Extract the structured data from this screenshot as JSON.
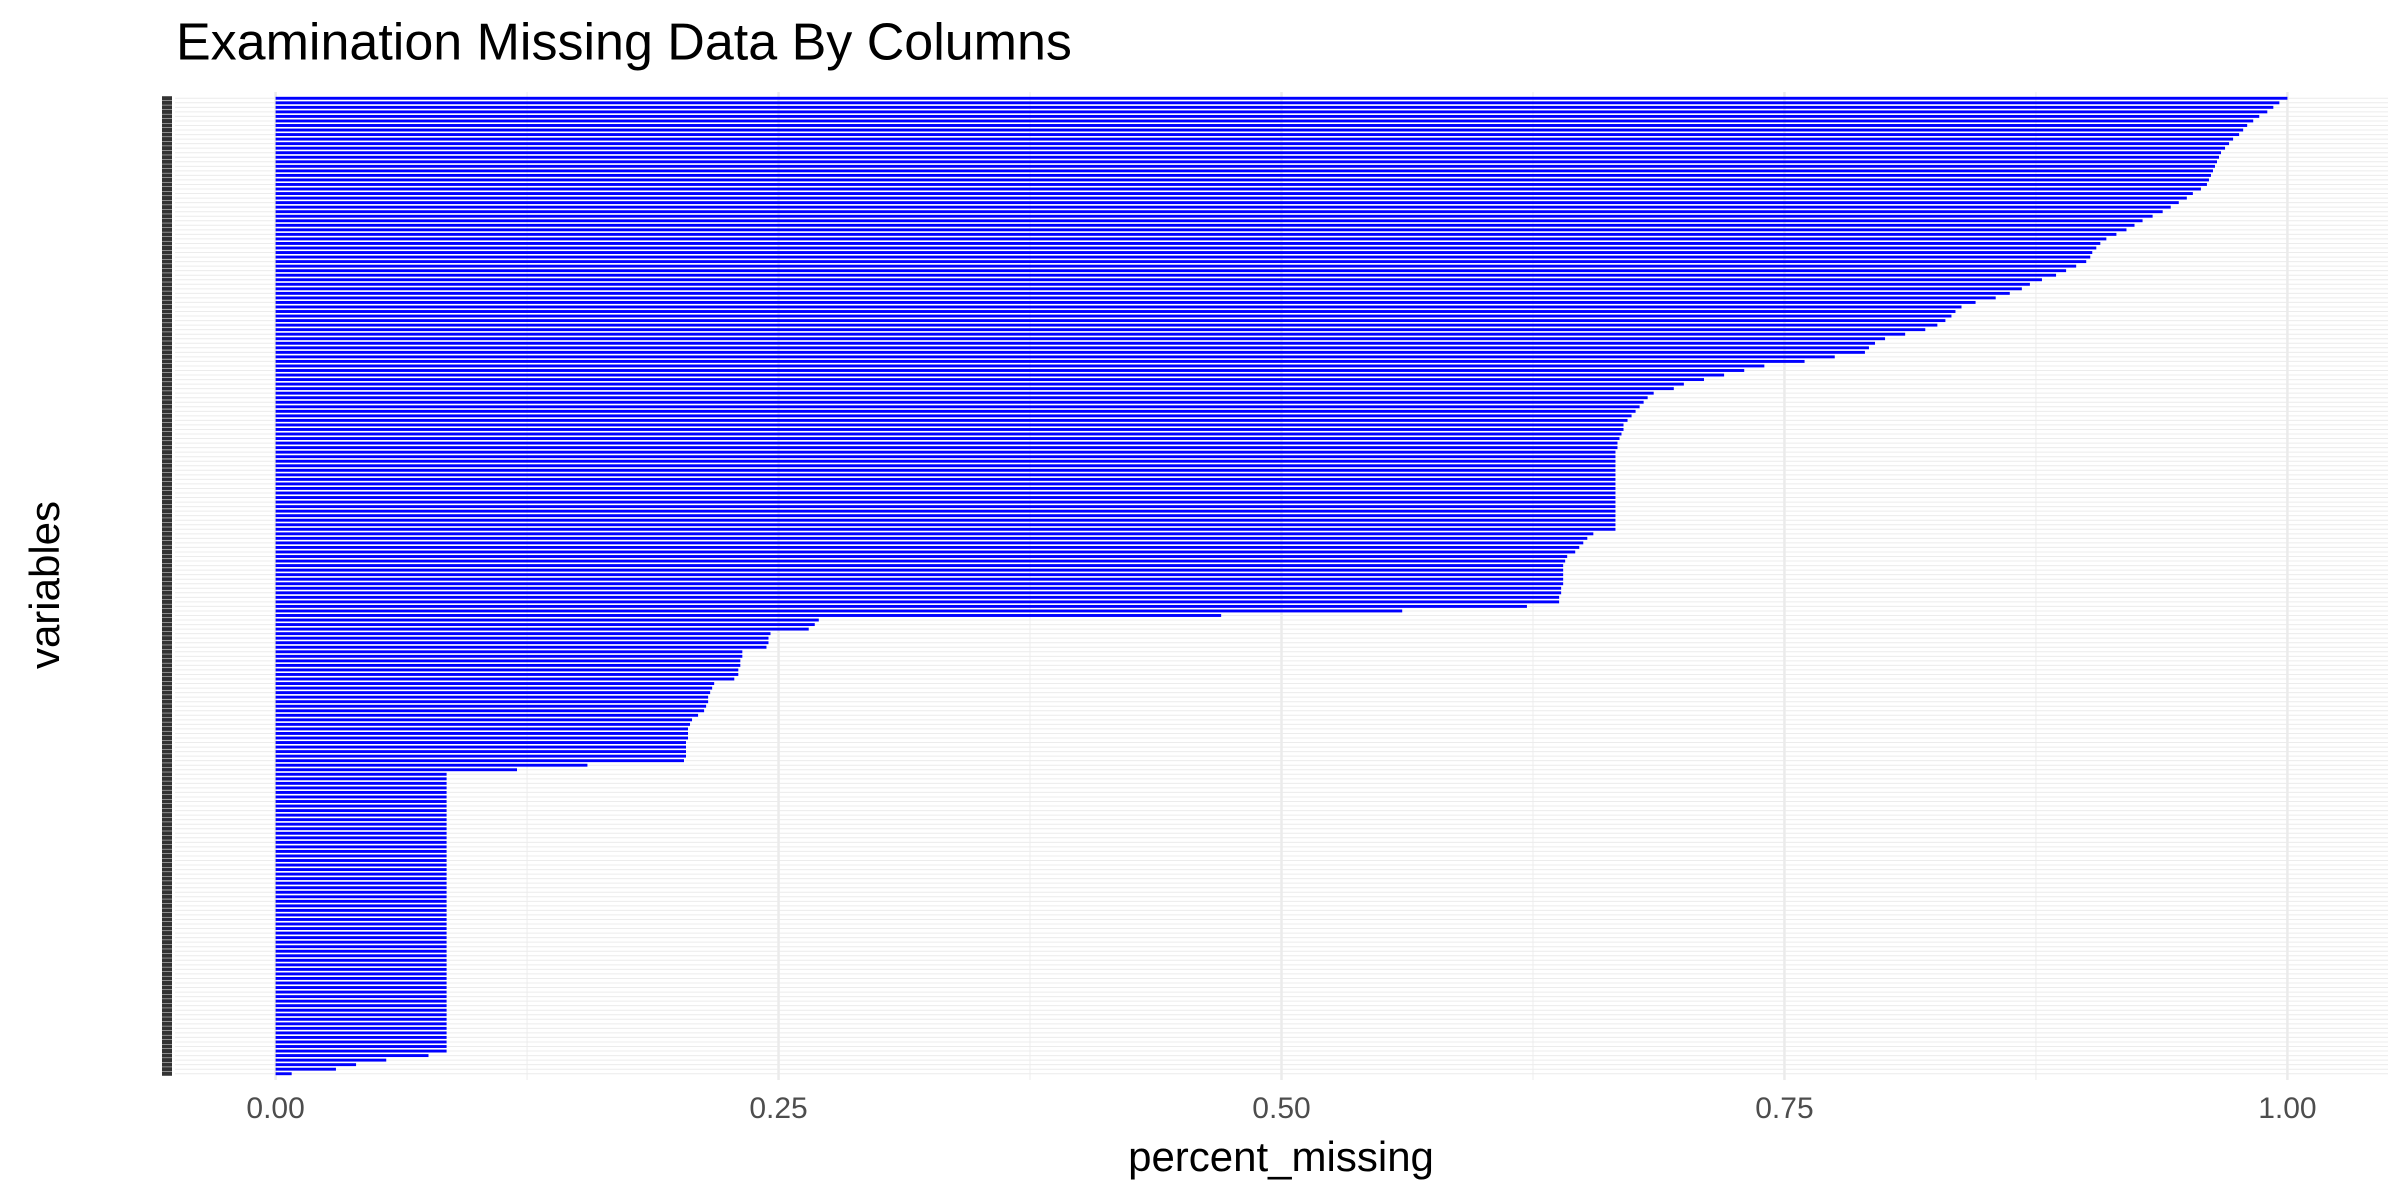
{
  "chart_data": {
    "type": "bar",
    "orientation": "horizontal",
    "title": "Examination Missing Data By Columns",
    "x_label": "percent_missing",
    "y_label": "variables",
    "color": "#0000ff",
    "grid": true,
    "xlim": [
      -0.05,
      1.05
    ],
    "xticks": [
      {
        "value": 0,
        "label": "0.00"
      },
      0.25,
      {
        "value": 0.5,
        "label": "0.50"
      },
      0.75,
      {
        "value": 1,
        "label": "1.00"
      }
    ],
    "categories": [
      null,
      null,
      null,
      null,
      null,
      null,
      null,
      null,
      null,
      null,
      null,
      null,
      null,
      null,
      null,
      null,
      null,
      null,
      null,
      null,
      null,
      null,
      null,
      null,
      null,
      null,
      null,
      null,
      null,
      null,
      null,
      null,
      null,
      null,
      null,
      null,
      null,
      null,
      null,
      null,
      null,
      null,
      null,
      null,
      null,
      null,
      null,
      null,
      null,
      null,
      null,
      null,
      null,
      null,
      null,
      null,
      null,
      null,
      null,
      null,
      null,
      null,
      null,
      null,
      null,
      null,
      null,
      null,
      null,
      null,
      null,
      null,
      null,
      null,
      null,
      null,
      null,
      null,
      null,
      null,
      null,
      null,
      null,
      null,
      null,
      null,
      null,
      null,
      null,
      null,
      null,
      null,
      null,
      null,
      null,
      null,
      null,
      null,
      null,
      null,
      null,
      null,
      null,
      null,
      null,
      null,
      null,
      null,
      null,
      null,
      null,
      null,
      null,
      null,
      null,
      null,
      null,
      null,
      null,
      null,
      null,
      null,
      null,
      null,
      null,
      null,
      null,
      null,
      null,
      null,
      null,
      null,
      null,
      null,
      null,
      null,
      null,
      null,
      null,
      null,
      null,
      null,
      null,
      null,
      null,
      null,
      null,
      null,
      null,
      null,
      null,
      null,
      null,
      null,
      null,
      null,
      null,
      null,
      null,
      null,
      null,
      null,
      null,
      null,
      null,
      null,
      null,
      null,
      null,
      null,
      null,
      null,
      null,
      null,
      null,
      null,
      null,
      null,
      null,
      null,
      null,
      null,
      null,
      null,
      null,
      null,
      null,
      null,
      null,
      null,
      null,
      null,
      null,
      null,
      null,
      null,
      null,
      null,
      null,
      null,
      null,
      null,
      null,
      null,
      null,
      null,
      null,
      null,
      null,
      null,
      null,
      null,
      null,
      null,
      null,
      null
    ],
    "values": [
      1.0,
      0.996,
      0.993,
      0.99,
      0.986,
      0.983,
      0.98,
      0.978,
      0.976,
      0.973,
      0.971,
      0.969,
      0.967,
      0.966,
      0.965,
      0.964,
      0.963,
      0.962,
      0.961,
      0.96,
      0.957,
      0.953,
      0.95,
      0.946,
      0.942,
      0.938,
      0.933,
      0.928,
      0.924,
      0.92,
      0.915,
      0.91,
      0.907,
      0.905,
      0.903,
      0.902,
      0.9,
      0.895,
      0.89,
      0.885,
      0.878,
      0.872,
      0.868,
      0.862,
      0.855,
      0.845,
      0.838,
      0.835,
      0.833,
      0.83,
      0.826,
      0.82,
      0.81,
      0.8,
      0.795,
      0.792,
      0.79,
      0.775,
      0.76,
      0.74,
      0.73,
      0.72,
      0.71,
      0.7,
      0.695,
      0.685,
      0.682,
      0.68,
      0.678,
      0.676,
      0.674,
      0.672,
      0.67,
      0.67,
      0.669,
      0.668,
      0.667,
      0.667,
      0.666,
      0.666,
      0.666,
      0.666,
      0.666,
      0.666,
      0.666,
      0.666,
      0.666,
      0.666,
      0.666,
      0.666,
      0.666,
      0.666,
      0.666,
      0.666,
      0.666,
      0.666,
      0.655,
      0.652,
      0.65,
      0.648,
      0.646,
      0.642,
      0.641,
      0.64,
      0.64,
      0.64,
      0.64,
      0.64,
      0.639,
      0.639,
      0.638,
      0.638,
      0.622,
      0.56,
      0.47,
      0.27,
      0.268,
      0.265,
      0.246,
      0.245,
      0.245,
      0.244,
      0.232,
      0.232,
      0.231,
      0.231,
      0.23,
      0.23,
      0.228,
      0.218,
      0.217,
      0.216,
      0.215,
      0.215,
      0.214,
      0.213,
      0.21,
      0.207,
      0.206,
      0.205,
      0.205,
      0.205,
      0.204,
      0.204,
      0.204,
      0.204,
      0.203,
      0.155,
      0.12,
      0.085,
      0.085,
      0.085,
      0.085,
      0.085,
      0.085,
      0.085,
      0.085,
      0.085,
      0.085,
      0.085,
      0.085,
      0.085,
      0.085,
      0.085,
      0.085,
      0.085,
      0.085,
      0.085,
      0.085,
      0.085,
      0.085,
      0.085,
      0.085,
      0.085,
      0.085,
      0.085,
      0.085,
      0.085,
      0.085,
      0.085,
      0.085,
      0.085,
      0.085,
      0.085,
      0.085,
      0.085,
      0.085,
      0.085,
      0.085,
      0.085,
      0.085,
      0.085,
      0.085,
      0.085,
      0.085,
      0.085,
      0.085,
      0.085,
      0.085,
      0.085,
      0.085,
      0.085,
      0.085,
      0.085,
      0.085,
      0.085,
      0.085,
      0.085,
      0.085,
      0.085,
      0.085,
      0.076,
      0.055,
      0.04,
      0.03,
      0.008
    ]
  }
}
